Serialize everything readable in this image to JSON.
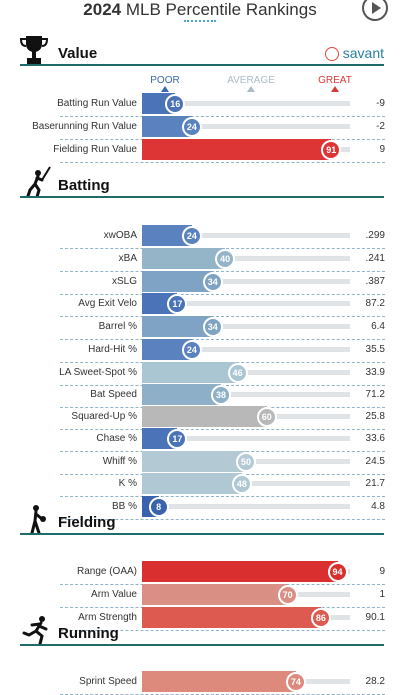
{
  "header": {
    "year": "2024",
    "title": "MLB Percentile Rankings"
  },
  "brand": "savant",
  "scale": {
    "poor": "POOR",
    "average": "AVERAGE",
    "great": "GREAT",
    "poor_color": "#3a68b0",
    "average_color": "#a9bcc7",
    "great_color": "#d83a3a"
  },
  "sections": [
    {
      "title": "Value",
      "icon": "trophy-icon",
      "rows": [
        {
          "label": "Batting Run Value",
          "pct": 16,
          "value": "-9",
          "color": "#4a73b8"
        },
        {
          "label": "Baserunning Run Value",
          "pct": 24,
          "value": "-2",
          "color": "#5a82bf"
        },
        {
          "label": "Fielding Run Value",
          "pct": 91,
          "value": "9",
          "color": "#dd3535"
        }
      ]
    },
    {
      "title": "Batting",
      "icon": "batter-icon",
      "rows": [
        {
          "label": "xwOBA",
          "pct": 24,
          "value": ".299",
          "color": "#5a82bf"
        },
        {
          "label": "xBA",
          "pct": 40,
          "value": ".241",
          "color": "#94b4c8"
        },
        {
          "label": "xSLG",
          "pct": 34,
          "value": ".387",
          "color": "#7fa3c4"
        },
        {
          "label": "Avg Exit Velo",
          "pct": 17,
          "value": "87.2",
          "color": "#4a73b8"
        },
        {
          "label": "Barrel %",
          "pct": 34,
          "value": "6.4",
          "color": "#7fa3c4"
        },
        {
          "label": "Hard-Hit %",
          "pct": 24,
          "value": "35.5",
          "color": "#5a82bf"
        },
        {
          "label": "LA Sweet-Spot %",
          "pct": 46,
          "value": "33.9",
          "color": "#a9c6d2"
        },
        {
          "label": "Bat Speed",
          "pct": 38,
          "value": "71.2",
          "color": "#8dafc8"
        },
        {
          "label": "Squared-Up %",
          "pct": 60,
          "value": "25.8",
          "color": "#b8b8b8"
        },
        {
          "label": "Chase %",
          "pct": 17,
          "value": "33.6",
          "color": "#4a73b8"
        },
        {
          "label": "Whiff %",
          "pct": 50,
          "value": "24.5",
          "color": "#b3cad4"
        },
        {
          "label": "K %",
          "pct": 48,
          "value": "21.7",
          "color": "#afc8d3"
        },
        {
          "label": "BB %",
          "pct": 8,
          "value": "4.8",
          "color": "#3a62ad"
        }
      ]
    },
    {
      "title": "Fielding",
      "icon": "fielder-icon",
      "rows": [
        {
          "label": "Range (OAA)",
          "pct": 94,
          "value": "9",
          "color": "#d92f2f"
        },
        {
          "label": "Arm Value",
          "pct": 70,
          "value": "1",
          "color": "#d98f84"
        },
        {
          "label": "Arm Strength",
          "pct": 86,
          "value": "90.1",
          "color": "#dd5a50"
        }
      ]
    },
    {
      "title": "Running",
      "icon": "runner-icon",
      "rows": [
        {
          "label": "Sprint Speed",
          "pct": 74,
          "value": "28.2",
          "color": "#dd8a7c"
        }
      ]
    }
  ]
}
